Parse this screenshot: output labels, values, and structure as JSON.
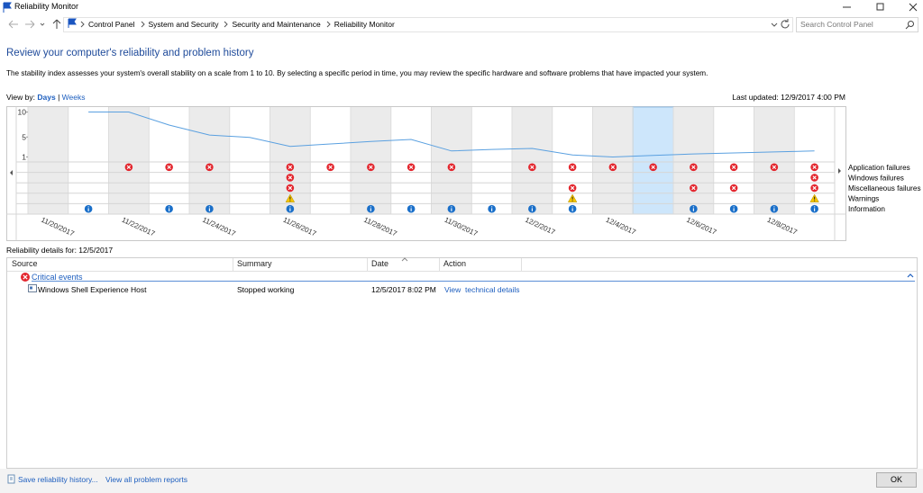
{
  "window": {
    "title": "Reliability Monitor"
  },
  "address_bar": {
    "breadcrumb": [
      "Control Panel",
      "System and Security",
      "Security and Maintenance",
      "Reliability Monitor"
    ],
    "search_placeholder": "Search Control Panel"
  },
  "header": {
    "title": "Review your computer's reliability and problem history",
    "description": "The stability index assesses your system's overall stability on a scale from 1 to 10. By selecting a specific period in time, you may review the specific hardware and software problems that have impacted your system."
  },
  "view_by": {
    "label": "View by:",
    "options": [
      "Days",
      "Weeks"
    ],
    "separator": "|"
  },
  "last_updated": "Last updated: 12/9/2017 4:00 PM",
  "chart_data": {
    "type": "reliability",
    "categories": [
      "11/20/2017",
      null,
      "11/22/2017",
      null,
      "11/24/2017",
      null,
      "11/26/2017",
      null,
      "11/28/2017",
      null,
      "11/30/2017",
      null,
      "12/2/2017",
      null,
      "12/4/2017",
      null,
      "12/6/2017",
      null,
      "12/8/2017",
      null
    ],
    "ylim": [
      0,
      11
    ],
    "yticks": [
      1,
      5,
      10
    ],
    "stability_index": [
      null,
      10,
      10,
      7.4,
      5.4,
      4.9,
      3.1,
      3.6,
      4.1,
      4.5,
      2.2,
      2.5,
      2.7,
      1.4,
      1.0,
      1.3,
      1.6,
      1.8,
      2.0,
      2.2
    ],
    "line_color": "#5aa0e0",
    "selected": 15,
    "event_rows": [
      {
        "label": "Application failures",
        "icon": "error",
        "days": [
          2,
          3,
          4,
          6,
          7,
          8,
          9,
          10,
          12,
          13,
          14,
          15,
          16,
          17,
          18,
          19
        ]
      },
      {
        "label": "Windows failures",
        "icon": "error",
        "days": [
          6,
          19
        ]
      },
      {
        "label": "Miscellaneous failures",
        "icon": "error",
        "days": [
          6,
          13,
          16,
          17,
          19
        ]
      },
      {
        "label": "Warnings",
        "icon": "warning",
        "days": [
          6,
          13,
          19
        ]
      },
      {
        "label": "Information",
        "icon": "info",
        "days": [
          1,
          3,
          4,
          6,
          8,
          9,
          10,
          11,
          12,
          13,
          16,
          17,
          18,
          19
        ]
      }
    ]
  },
  "details": {
    "title": "Reliability details for: 12/5/2017",
    "columns": [
      "Source",
      "Summary",
      "Date",
      "Action"
    ],
    "groups": [
      {
        "name": "Critical events",
        "rows": [
          [
            "Windows Shell Experience Host",
            "Stopped working",
            "12/5/2017 8:02 PM",
            "View  technical details"
          ]
        ]
      }
    ]
  },
  "footer": {
    "links": [
      "Save reliability history...",
      "View all problem reports"
    ],
    "button": "OK"
  }
}
